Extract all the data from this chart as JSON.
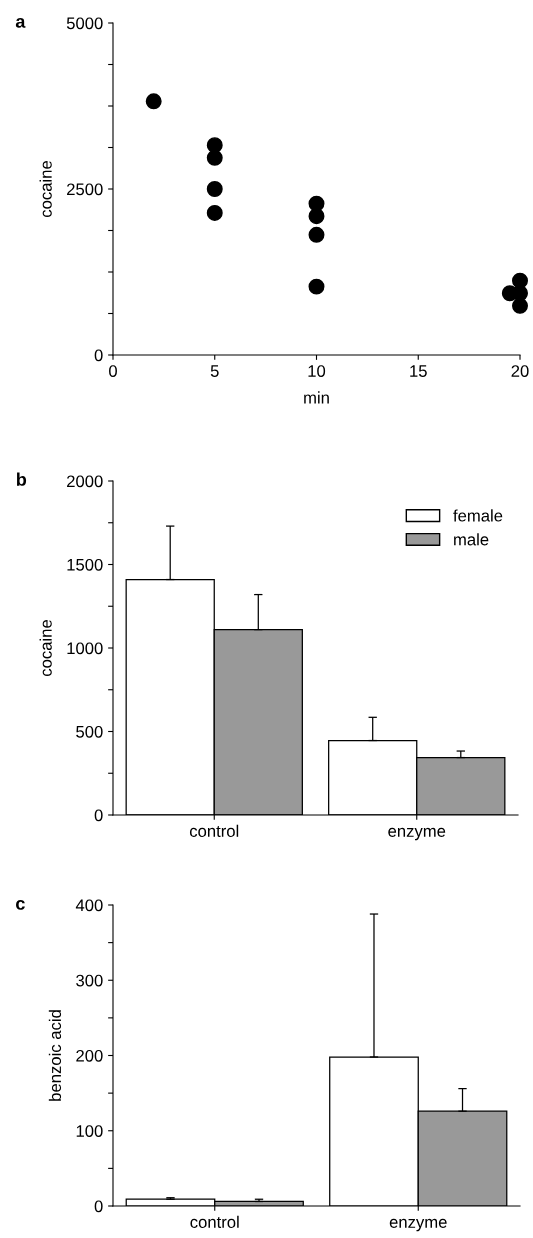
{
  "chart_data": [
    {
      "type": "scatter",
      "title": "a",
      "xlabel": "min",
      "ylabel": "cocaine",
      "marker": "circle",
      "grid": false,
      "x": [
        2,
        5,
        5,
        5,
        5,
        10,
        10,
        10,
        10,
        19.5,
        20,
        20,
        20
      ],
      "series": [
        {
          "color": "#000000",
          "values": [
            3820,
            3160,
            2970,
            2500,
            2140,
            2280,
            2090,
            1810,
            1030,
            930,
            1120,
            740,
            930
          ]
        }
      ],
      "xlim": [
        0,
        20
      ],
      "xticks": [
        0,
        5,
        10,
        15,
        20
      ],
      "ylim": [
        0,
        5000
      ],
      "yticks": [
        0,
        {
          "value": 625,
          "label": null
        },
        {
          "value": 1250,
          "label": null
        },
        {
          "value": 1875,
          "label": null
        },
        2500,
        {
          "value": 3125,
          "label": null
        },
        {
          "value": 3750,
          "label": null
        },
        {
          "value": 4375,
          "label": null
        },
        5000
      ]
    },
    {
      "type": "bar",
      "title": "b",
      "ylabel": "cocaine",
      "categories": [
        "control",
        "enzyme"
      ],
      "legend": "top right",
      "grid": false,
      "series": [
        {
          "name": "female",
          "color": "#ffffff",
          "values": [
            1410,
            446
          ],
          "errors": [
            [
              1410,
              1730
            ],
            [
              446,
              585
            ]
          ]
        },
        {
          "name": "male",
          "color": "#999999",
          "values": [
            1110,
            344
          ],
          "errors": [
            [
              1110,
              1320
            ],
            [
              344,
              383
            ]
          ]
        }
      ],
      "ylim": [
        0,
        2000
      ],
      "yticks": [
        0,
        {
          "value": 250,
          "label": null
        },
        500,
        {
          "value": 750,
          "label": null
        },
        1000,
        {
          "value": 1250,
          "label": null
        },
        1500,
        {
          "value": 1750,
          "label": null
        },
        2000
      ]
    },
    {
      "type": "bar",
      "title": "c",
      "ylabel": "benzoic acid",
      "categories": [
        "control",
        "enzyme"
      ],
      "grid": false,
      "series": [
        {
          "color": "#ffffff",
          "values": [
            9,
            198
          ],
          "errors": [
            [
              9,
              11
            ],
            [
              198,
              388
            ]
          ]
        },
        {
          "color": "#999999",
          "values": [
            6,
            126
          ],
          "errors": [
            [
              6,
              9
            ],
            [
              126,
              156
            ]
          ]
        }
      ],
      "ylim": [
        0,
        400
      ],
      "yticks": [
        0,
        {
          "value": 50,
          "label": null
        },
        100,
        {
          "value": 150,
          "label": null
        },
        200,
        {
          "value": 250,
          "label": null
        },
        300,
        {
          "value": 350,
          "label": null
        },
        400
      ]
    }
  ]
}
